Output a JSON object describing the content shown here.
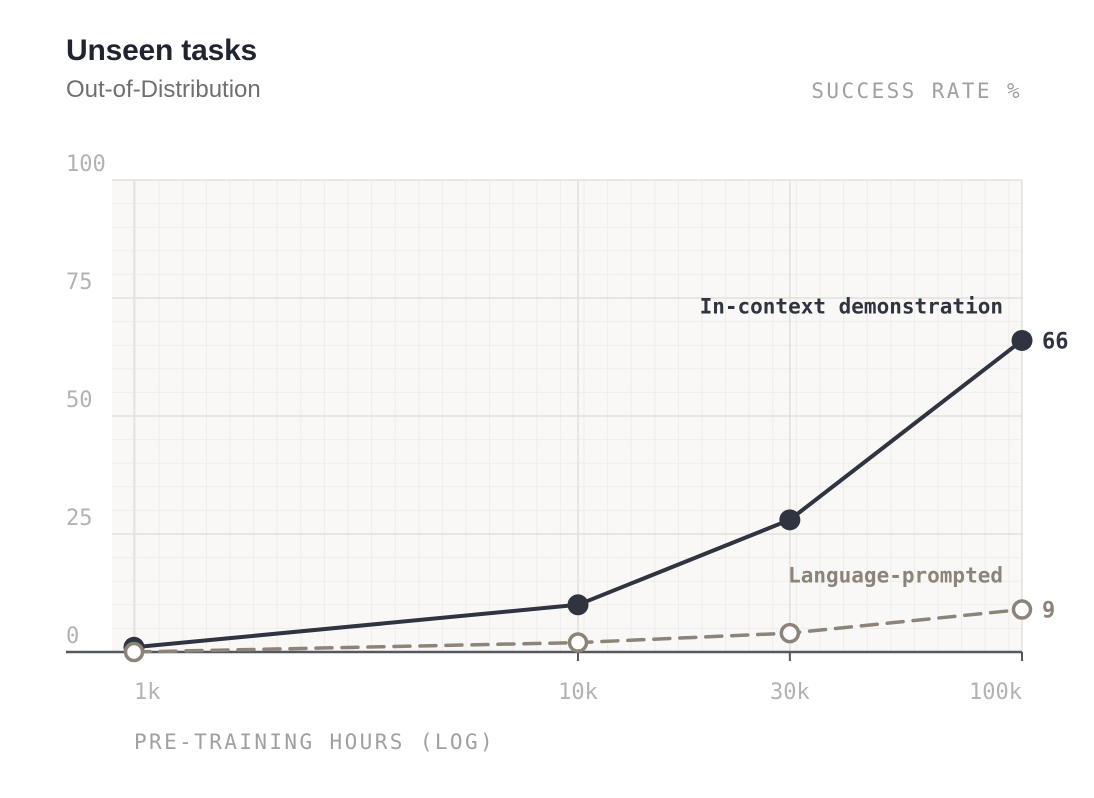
{
  "header": {
    "title": "Unseen tasks",
    "subtitle": "Out-of-Distribution"
  },
  "chart_data": {
    "type": "line",
    "title": "Unseen tasks",
    "subtitle": "Out-of-Distribution",
    "xlabel": "PRE-TRAINING HOURS (LOG)",
    "ylabel": "SUCCESS RATE %",
    "x_scale": "log",
    "x": [
      1000,
      10000,
      30000,
      100000
    ],
    "x_tick_labels": [
      "1k",
      "10k",
      "30k",
      "100k"
    ],
    "ylim": [
      0,
      100
    ],
    "y_ticks": [
      0,
      25,
      50,
      75,
      100
    ],
    "grid": true,
    "series": [
      {
        "name": "In-context demonstration",
        "values": [
          1,
          10,
          28,
          66
        ],
        "end_label": "66",
        "color": "#2f3440",
        "style": "solid",
        "marker": "filled-circle"
      },
      {
        "name": "Language-prompted",
        "values": [
          0,
          2,
          4,
          9
        ],
        "end_label": "9",
        "color": "#8c8479",
        "style": "dashed",
        "marker": "hollow-circle"
      }
    ]
  }
}
